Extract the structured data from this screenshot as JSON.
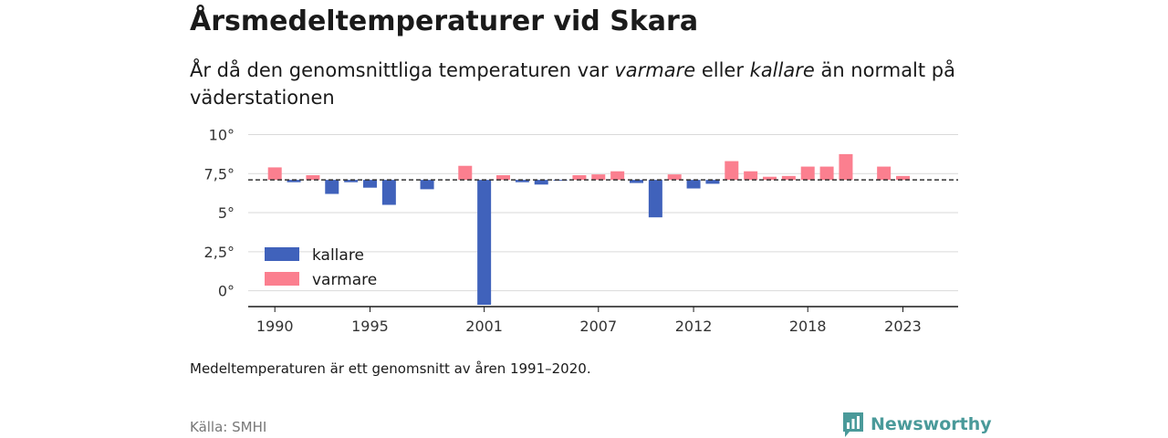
{
  "header": {
    "title": "Årsmedeltemperaturer vid Skara",
    "subtitle_pre": "År då den genomsnittliga temperaturen var ",
    "subtitle_warm": "varmare",
    "subtitle_mid": " eller ",
    "subtitle_cold": "kallare",
    "subtitle_post": " än normalt på väderstationen"
  },
  "footer": {
    "note": "Medeltemperaturen är ett genomsnitt av åren 1991–2020.",
    "source": "Källa: SMHI",
    "brand": "Newsworthy"
  },
  "colors": {
    "cold": "#4062bb",
    "warm": "#fb7f8f",
    "baseline": "#333333",
    "grid": "#d9d9d9",
    "brand": "#4a9a9a"
  },
  "chart_data": {
    "type": "bar",
    "baseline": 7.1,
    "ylim": [
      -0.9,
      10
    ],
    "xlim": [
      1988.6,
      2025.9
    ],
    "yticks": [
      0,
      2.5,
      5,
      7.5,
      10
    ],
    "ytick_labels": [
      "0°",
      "2,5°",
      "5°",
      "7,5°",
      "10°"
    ],
    "xticks": [
      1990,
      1995,
      2001,
      2007,
      2012,
      2018,
      2023
    ],
    "xtick_labels": [
      "1990",
      "1995",
      "2001",
      "2007",
      "2012",
      "2018",
      "2023"
    ],
    "legend": {
      "position": "bottom-left",
      "cold_label": "kallare",
      "warm_label": "varmare"
    },
    "series": [
      {
        "name": "kallare",
        "x": [
          1991,
          1993,
          1994,
          1995,
          1996,
          1998,
          2001,
          2003,
          2004,
          2005,
          2009,
          2010,
          2012,
          2013
        ],
        "values": [
          6.95,
          6.2,
          6.95,
          6.6,
          5.5,
          6.5,
          -0.9,
          6.95,
          6.8,
          7.05,
          6.9,
          4.7,
          6.55,
          6.85
        ]
      },
      {
        "name": "varmare",
        "x": [
          1990,
          1992,
          2000,
          2002,
          2006,
          2007,
          2008,
          2011,
          2014,
          2015,
          2016,
          2017,
          2018,
          2019,
          2020,
          2022,
          2023
        ],
        "values": [
          7.9,
          7.4,
          8.0,
          7.4,
          7.4,
          7.45,
          7.65,
          7.45,
          8.3,
          7.65,
          7.3,
          7.35,
          7.95,
          7.95,
          8.75,
          7.95,
          7.35
        ]
      }
    ]
  }
}
